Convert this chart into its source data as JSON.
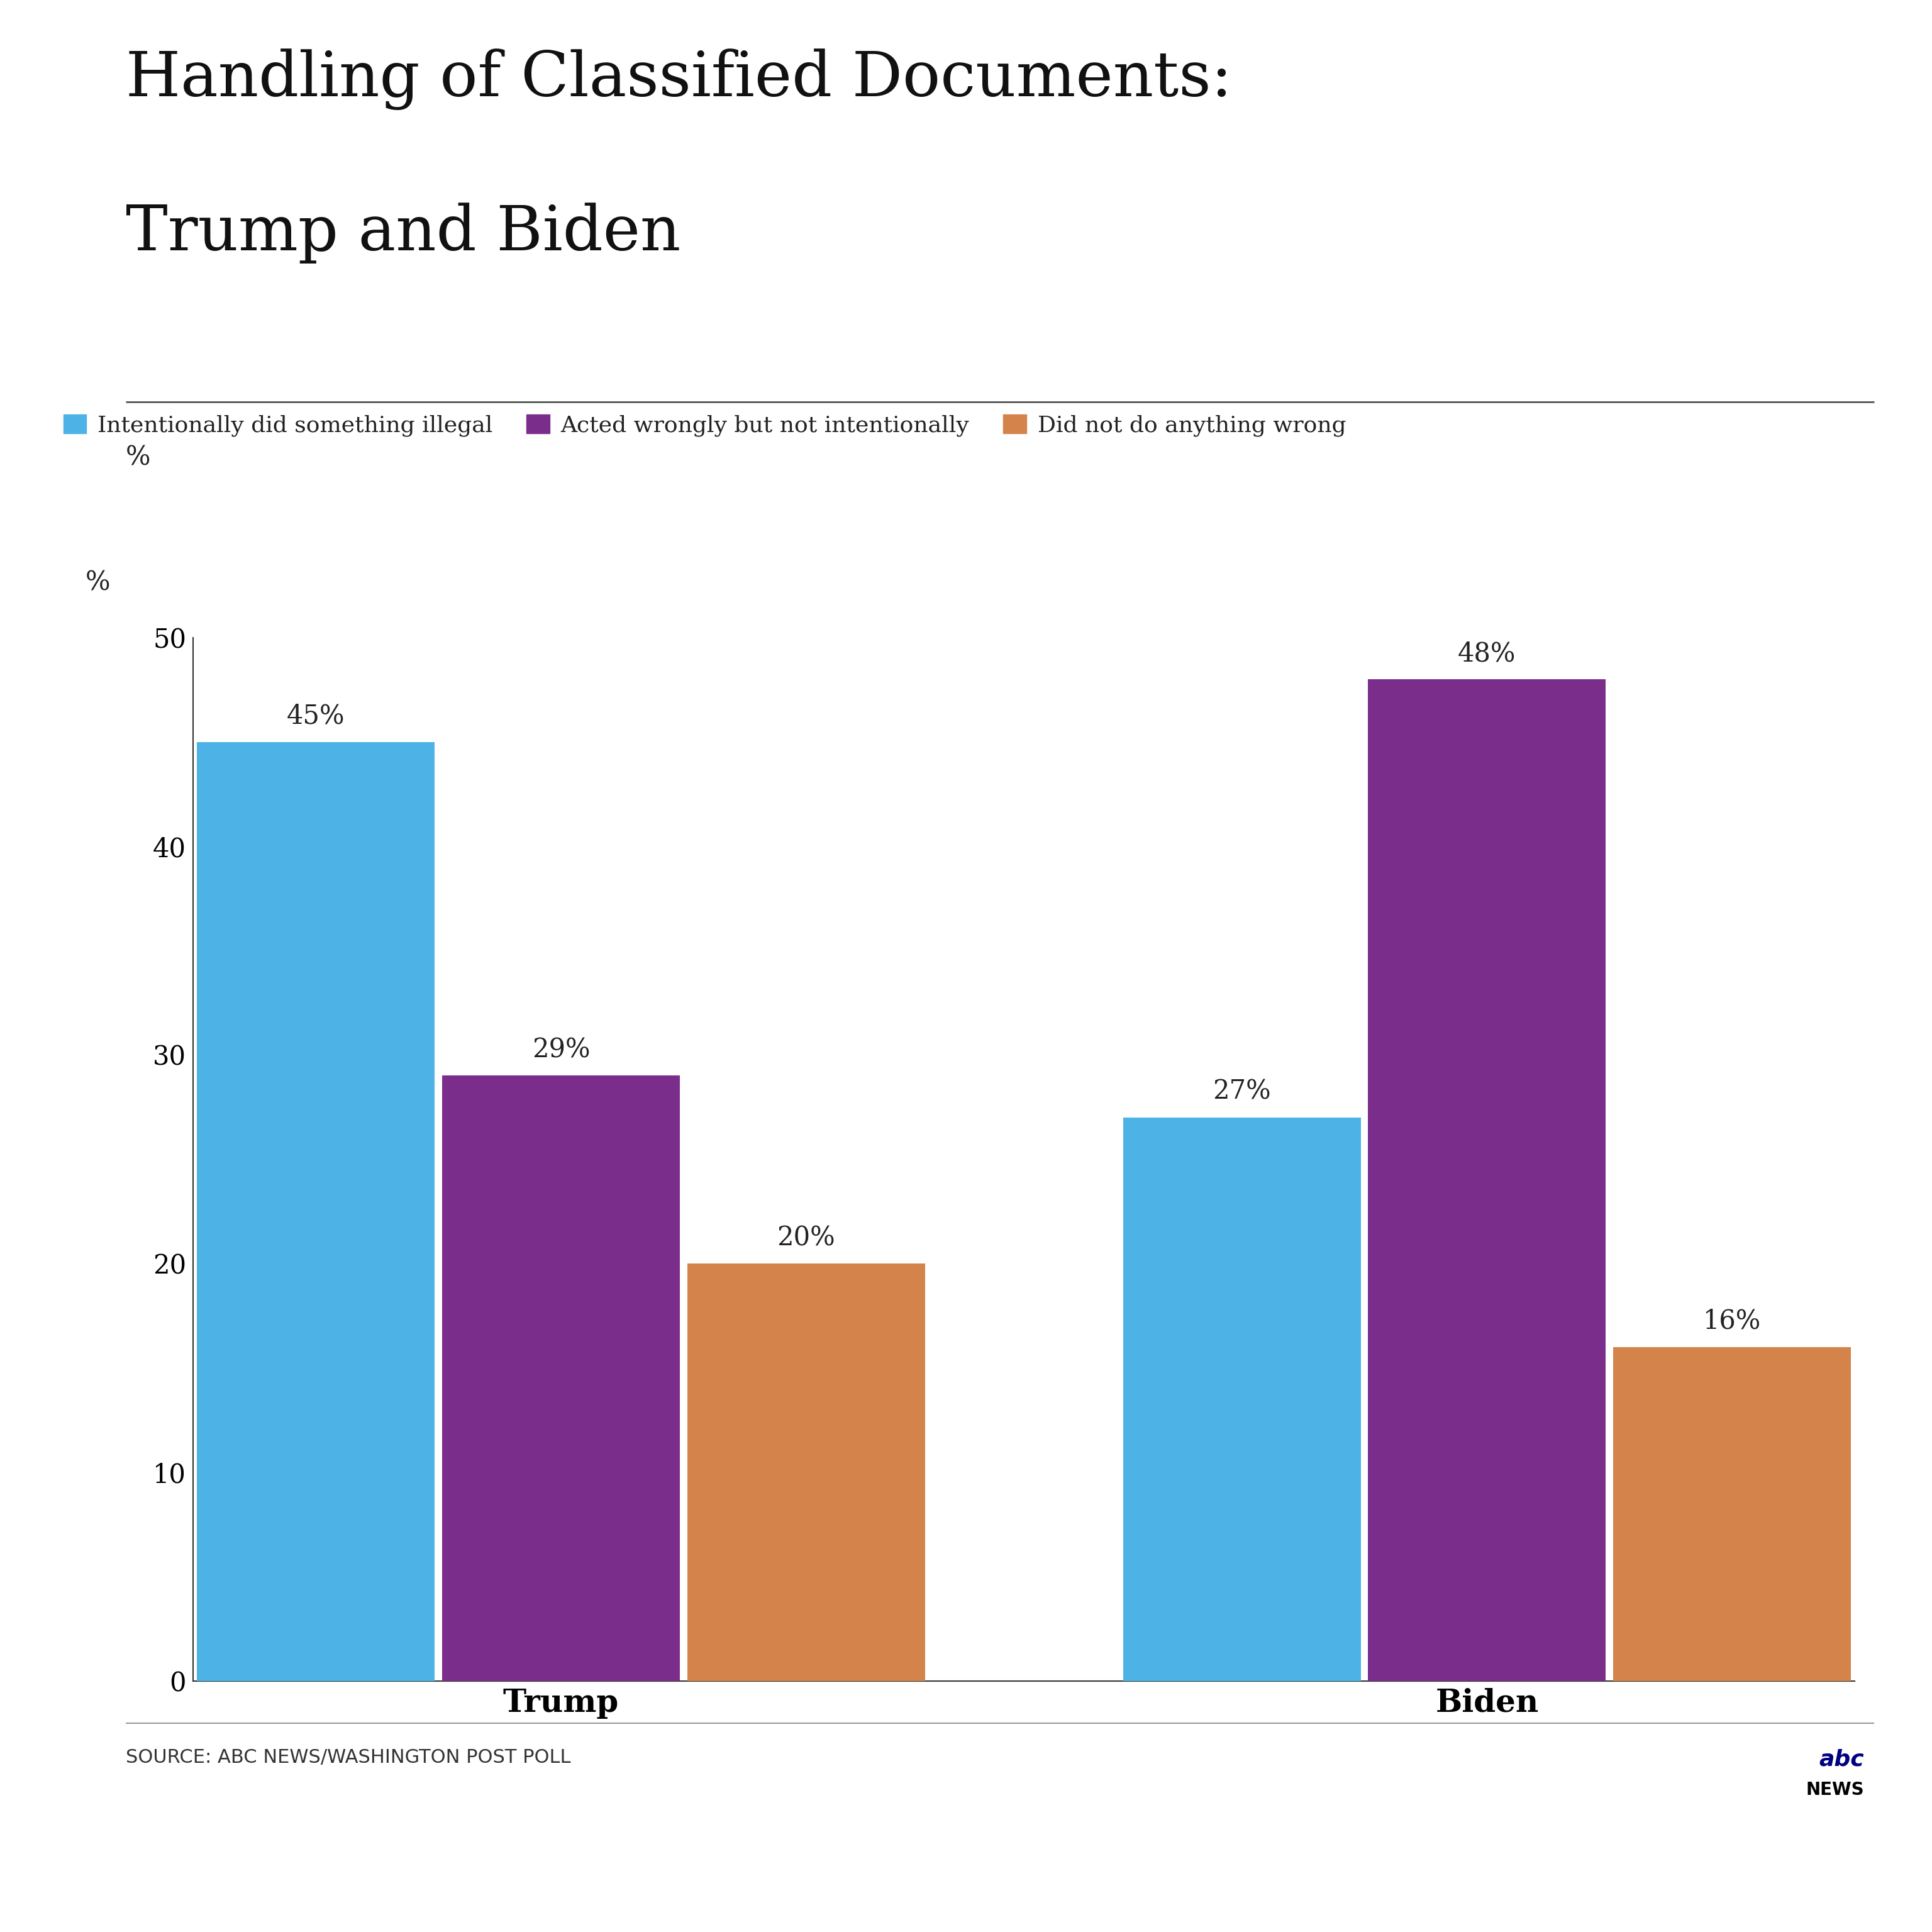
{
  "title_line1": "Handling of Classified Documents:",
  "title_line2": "Trump and Biden",
  "background_color": "#ffffff",
  "ylabel": "%",
  "ylim": [
    0,
    50
  ],
  "yticks": [
    0,
    10,
    20,
    30,
    40,
    50
  ],
  "groups": [
    "Trump",
    "Biden"
  ],
  "categories": [
    "Intentionally did something illegal",
    "Acted wrongly but not intentionally",
    "Did not do anything wrong"
  ],
  "colors": [
    "#4db3e6",
    "#7b2d8b",
    "#d4834a"
  ],
  "values": {
    "Trump": [
      45,
      29,
      20
    ],
    "Biden": [
      27,
      48,
      16
    ]
  },
  "bar_width": 0.18,
  "source_text": "SOURCE: ABC NEWS/WASHINGTON POST POLL",
  "title_fontsize": 72,
  "tick_fontsize": 30,
  "bar_label_fontsize": 30,
  "legend_fontsize": 26,
  "source_fontsize": 22,
  "group_label_fontsize": 36
}
